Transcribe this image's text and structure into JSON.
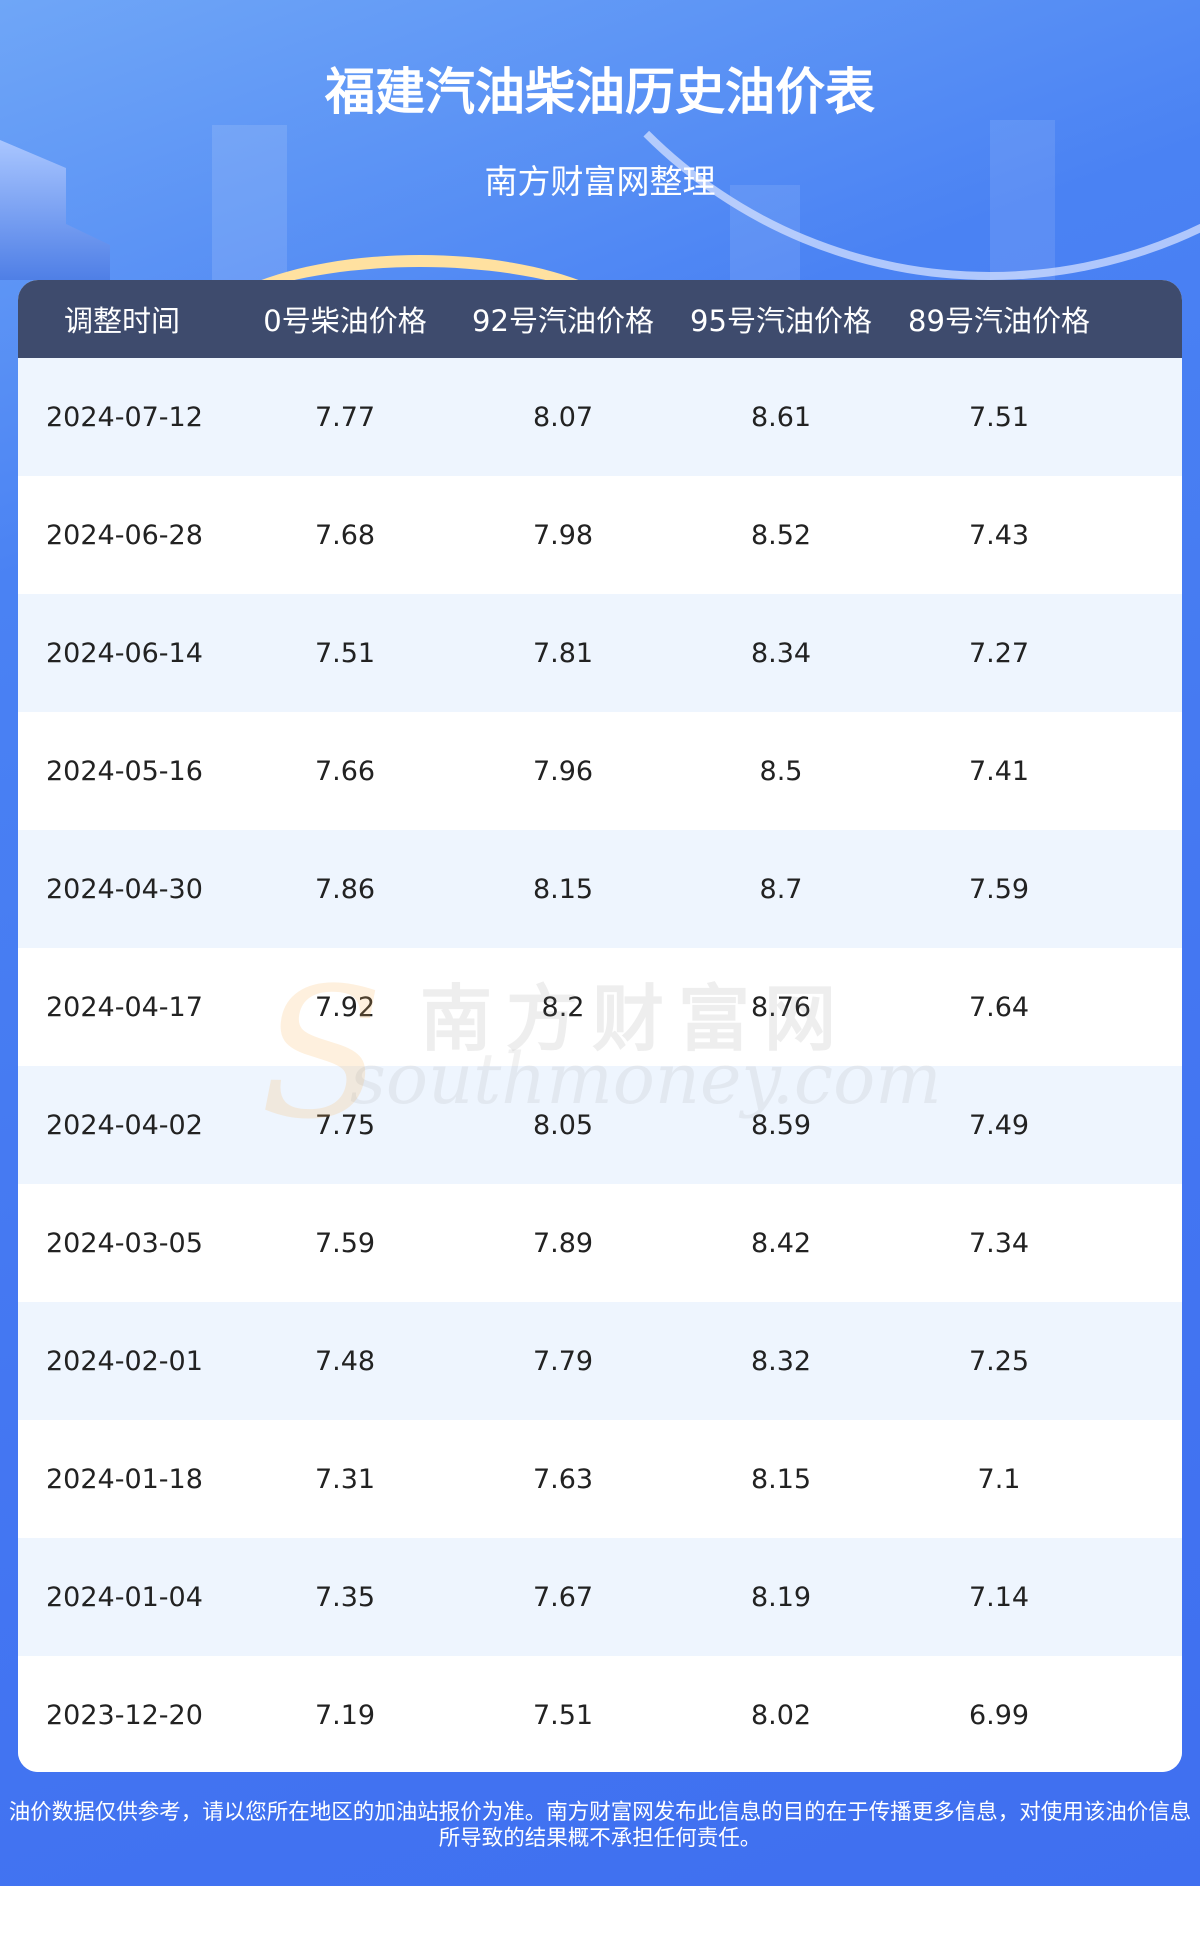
{
  "header": {
    "title": "福建汽油柴油历史油价表",
    "subtitle": "南方财富网整理"
  },
  "table": {
    "columns": [
      "调整时间",
      "0号柴油价格",
      "92号汽油价格",
      "95号汽油价格",
      "89号汽油价格"
    ],
    "rows": [
      [
        "2024-07-12",
        "7.77",
        "8.07",
        "8.61",
        "7.51"
      ],
      [
        "2024-06-28",
        "7.68",
        "7.98",
        "8.52",
        "7.43"
      ],
      [
        "2024-06-14",
        "7.51",
        "7.81",
        "8.34",
        "7.27"
      ],
      [
        "2024-05-16",
        "7.66",
        "7.96",
        "8.5",
        "7.41"
      ],
      [
        "2024-04-30",
        "7.86",
        "8.15",
        "8.7",
        "7.59"
      ],
      [
        "2024-04-17",
        "7.92",
        "8.2",
        "8.76",
        "7.64"
      ],
      [
        "2024-04-02",
        "7.75",
        "8.05",
        "8.59",
        "7.49"
      ],
      [
        "2024-03-05",
        "7.59",
        "7.89",
        "8.42",
        "7.34"
      ],
      [
        "2024-02-01",
        "7.48",
        "7.79",
        "8.32",
        "7.25"
      ],
      [
        "2024-01-18",
        "7.31",
        "7.63",
        "8.15",
        "7.1"
      ],
      [
        "2024-01-04",
        "7.35",
        "7.67",
        "8.19",
        "7.14"
      ],
      [
        "2023-12-20",
        "7.19",
        "7.51",
        "8.02",
        "6.99"
      ]
    ]
  },
  "watermark": {
    "cn": "南方财富网",
    "en": "southmoney.com"
  },
  "footer": {
    "disclaimer": "油价数据仅供参考，请以您所在地区的加油站报价为准。南方财富网发布此信息的目的在于传播更多信息，对使用该油价信息所导致的结果概不承担任何责任。"
  },
  "colors": {
    "background": "#4477f2",
    "table_header": "#3e4b6d",
    "row_alt": "#eef5fe"
  }
}
